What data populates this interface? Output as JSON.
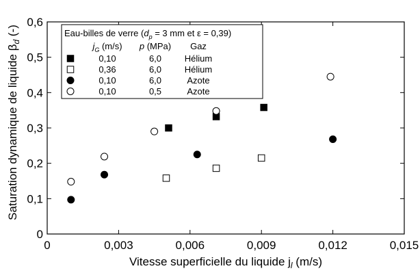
{
  "chart_data": {
    "type": "scatter",
    "xlabel": "Vitesse superficielle du liquide j",
    "xlabel_sub": "l",
    "xlabel_unit": " (m/s)",
    "ylabel": "Saturation dynamique de liquide β",
    "ylabel_sub": "d",
    "ylabel_unit": " (-)",
    "xlim": [
      0,
      0.015
    ],
    "ylim": [
      0,
      0.6
    ],
    "xticks": [
      0,
      0.003,
      0.006,
      0.009,
      0.012,
      0.015
    ],
    "xtick_labels": [
      "0",
      "0,003",
      "0,006",
      "0,009",
      "0,012",
      "0,015"
    ],
    "yticks": [
      0,
      0.1,
      0.2,
      0.3,
      0.4,
      0.5,
      0.6
    ],
    "ytick_labels": [
      "0",
      "0,1",
      "0,2",
      "0,3",
      "0,4",
      "0,5",
      "0,6"
    ],
    "grid": false,
    "legend_position": "top-left",
    "legend": {
      "title_parts": [
        "Eau-billes de verre (",
        "d",
        "p",
        " = 3 mm et ε = 0,39)"
      ],
      "headers": [
        {
          "main": "j",
          "sub": "G",
          "rest": " (m/s)"
        },
        {
          "main": "p",
          "sub": "",
          "rest": " (MPa)"
        },
        {
          "main": "Gaz",
          "sub": "",
          "rest": ""
        }
      ]
    },
    "series": [
      {
        "jG": "0,10",
        "p": "6,0",
        "gaz": "Hélium",
        "marker": "filled-square",
        "points": [
          [
            0.0051,
            0.3
          ],
          [
            0.0071,
            0.332
          ],
          [
            0.0091,
            0.358
          ]
        ]
      },
      {
        "jG": "0,36",
        "p": "6,0",
        "gaz": "Hélium",
        "marker": "open-square",
        "points": [
          [
            0.005,
            0.158
          ],
          [
            0.0071,
            0.186
          ],
          [
            0.009,
            0.215
          ]
        ]
      },
      {
        "jG": "0,10",
        "p": "6,0",
        "gaz": "Azote",
        "marker": "filled-circle",
        "points": [
          [
            0.001,
            0.097
          ],
          [
            0.0024,
            0.168
          ],
          [
            0.0063,
            0.225
          ],
          [
            0.012,
            0.268
          ]
        ]
      },
      {
        "jG": "0,10",
        "p": "0,5",
        "gaz": "Azote",
        "marker": "open-circle",
        "points": [
          [
            0.001,
            0.148
          ],
          [
            0.0024,
            0.219
          ],
          [
            0.0045,
            0.29
          ],
          [
            0.0071,
            0.348
          ],
          [
            0.0119,
            0.445
          ]
        ]
      }
    ]
  }
}
